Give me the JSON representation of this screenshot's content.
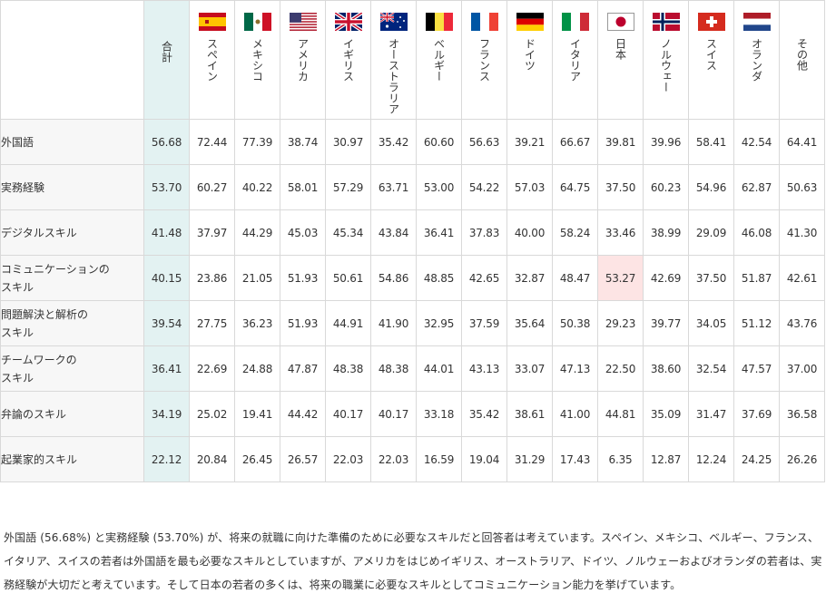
{
  "table": {
    "total_label": "合計",
    "columns": [
      {
        "label": "スペイン",
        "flag": "spain-flag-icon"
      },
      {
        "label": "メキシコ",
        "flag": "mexico-flag-icon"
      },
      {
        "label": "アメリカ",
        "flag": "usa-flag-icon"
      },
      {
        "label": "イギリス",
        "flag": "uk-flag-icon"
      },
      {
        "label": "オーストラリア",
        "flag": "australia-flag-icon"
      },
      {
        "label": "ベルギー",
        "flag": "belgium-flag-icon"
      },
      {
        "label": "フランス",
        "flag": "france-flag-icon"
      },
      {
        "label": "ドイツ",
        "flag": "germany-flag-icon"
      },
      {
        "label": "イタリア",
        "flag": "italy-flag-icon"
      },
      {
        "label": "日本",
        "flag": "japan-flag-icon"
      },
      {
        "label": "ノルウェー",
        "flag": "norway-flag-icon"
      },
      {
        "label": "スイス",
        "flag": "switzerland-flag-icon"
      },
      {
        "label": "オランダ",
        "flag": "netherlands-flag-icon"
      },
      {
        "label": "その他",
        "flag": ""
      }
    ],
    "rows": [
      {
        "label": "外国語",
        "total": "56.68",
        "values": [
          "72.44",
          "77.39",
          "38.74",
          "30.97",
          "35.42",
          "60.60",
          "56.63",
          "39.21",
          "66.67",
          "39.81",
          "39.96",
          "58.41",
          "42.54",
          "64.41"
        ]
      },
      {
        "label": "実務経験",
        "total": "53.70",
        "values": [
          "60.27",
          "40.22",
          "58.01",
          "57.29",
          "63.71",
          "53.00",
          "54.22",
          "57.03",
          "64.75",
          "37.50",
          "60.23",
          "54.96",
          "62.87",
          "50.63"
        ]
      },
      {
        "label": "デジタルスキル",
        "total": "41.48",
        "values": [
          "37.97",
          "44.29",
          "45.03",
          "45.34",
          "43.84",
          "36.41",
          "37.83",
          "40.00",
          "58.24",
          "33.46",
          "38.99",
          "29.09",
          "46.08",
          "41.30"
        ]
      },
      {
        "label": "コミュニケーションのスキル",
        "line1": "コミュニケーションの",
        "line2": "スキル",
        "total": "40.15",
        "values": [
          "23.86",
          "21.05",
          "51.93",
          "50.61",
          "54.86",
          "48.85",
          "42.65",
          "32.87",
          "48.47",
          "53.27",
          "42.69",
          "37.50",
          "51.87",
          "42.61"
        ]
      },
      {
        "label": "問題解決と解析のスキル",
        "line1": "問題解決と解析の",
        "line2": "スキル",
        "total": "39.54",
        "values": [
          "27.75",
          "36.23",
          "51.93",
          "44.91",
          "41.90",
          "32.95",
          "37.59",
          "35.64",
          "50.38",
          "29.23",
          "39.77",
          "34.05",
          "51.12",
          "43.76"
        ]
      },
      {
        "label": "チームワークのスキル",
        "line1": "チームワークの",
        "line2": "スキル",
        "total": "36.41",
        "values": [
          "22.69",
          "24.88",
          "47.87",
          "48.38",
          "48.38",
          "44.01",
          "43.13",
          "33.07",
          "47.13",
          "22.50",
          "38.60",
          "32.54",
          "47.57",
          "37.00"
        ]
      },
      {
        "label": "弁論のスキル",
        "total": "34.19",
        "values": [
          "25.02",
          "19.41",
          "44.42",
          "40.17",
          "40.17",
          "33.18",
          "35.42",
          "38.61",
          "41.00",
          "44.81",
          "35.09",
          "31.47",
          "37.69",
          "36.58"
        ]
      },
      {
        "label": "起業家的スキル",
        "total": "22.12",
        "values": [
          "20.84",
          "26.45",
          "26.57",
          "22.03",
          "22.03",
          "16.59",
          "19.04",
          "31.29",
          "17.43",
          "6.35",
          "12.87",
          "12.24",
          "24.25",
          "26.26"
        ]
      }
    ],
    "highlight": {
      "row": 3,
      "col": 9,
      "color": "#fde4e4"
    },
    "total_color": "#e3f2f2"
  },
  "note": "外国語 (56.68%) と実務経験 (53.70%) が、将来の就職に向けた準備のために必要なスキルだと回答者は考えています。スペイン、メキシコ、ベルギー、フランス、イタリア、スイスの若者は外国語を最も必要なスキルとしていますが、アメリカをはじめイギリス、オーストラリア、ドイツ、ノルウェーおよびオランダの若者は、実務経験が大切だと考えています。そして日本の若者の多くは、将来の職業に必要なスキルとしてコミュニケーション能力を挙げています。"
}
